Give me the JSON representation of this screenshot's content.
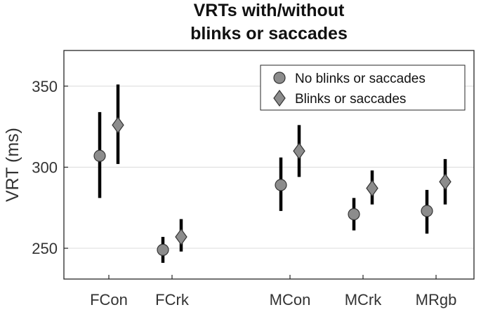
{
  "chart_data": {
    "type": "scatter",
    "title": [
      "VRTs with/without",
      "blinks or saccades"
    ],
    "ylabel": "VRT (ms)",
    "xlabel": "",
    "categories": [
      "FCon",
      "FCrk",
      "MCon",
      "MCrk",
      "MRgb"
    ],
    "ylim": [
      231,
      372
    ],
    "yticks": [
      250,
      300,
      350
    ],
    "grid": true,
    "legend_position": "top-right",
    "series": [
      {
        "name": "No blinks or saccades",
        "marker": "circle",
        "values": [
          307,
          249,
          289,
          271,
          273
        ],
        "lower": [
          281,
          241,
          273,
          261,
          259
        ],
        "upper": [
          334,
          257,
          306,
          281,
          286
        ]
      },
      {
        "name": "Blinks or saccades",
        "marker": "diamond",
        "values": [
          326,
          257,
          310,
          287,
          291
        ],
        "lower": [
          302,
          248,
          294,
          277,
          277
        ],
        "upper": [
          351,
          268,
          326,
          298,
          305
        ]
      }
    ],
    "colors": {
      "marker_fill": "#8c8c8c",
      "marker_stroke": "#333333",
      "errorbar": "#000000",
      "grid": "#e0e0e0",
      "axis": "#262626"
    }
  }
}
